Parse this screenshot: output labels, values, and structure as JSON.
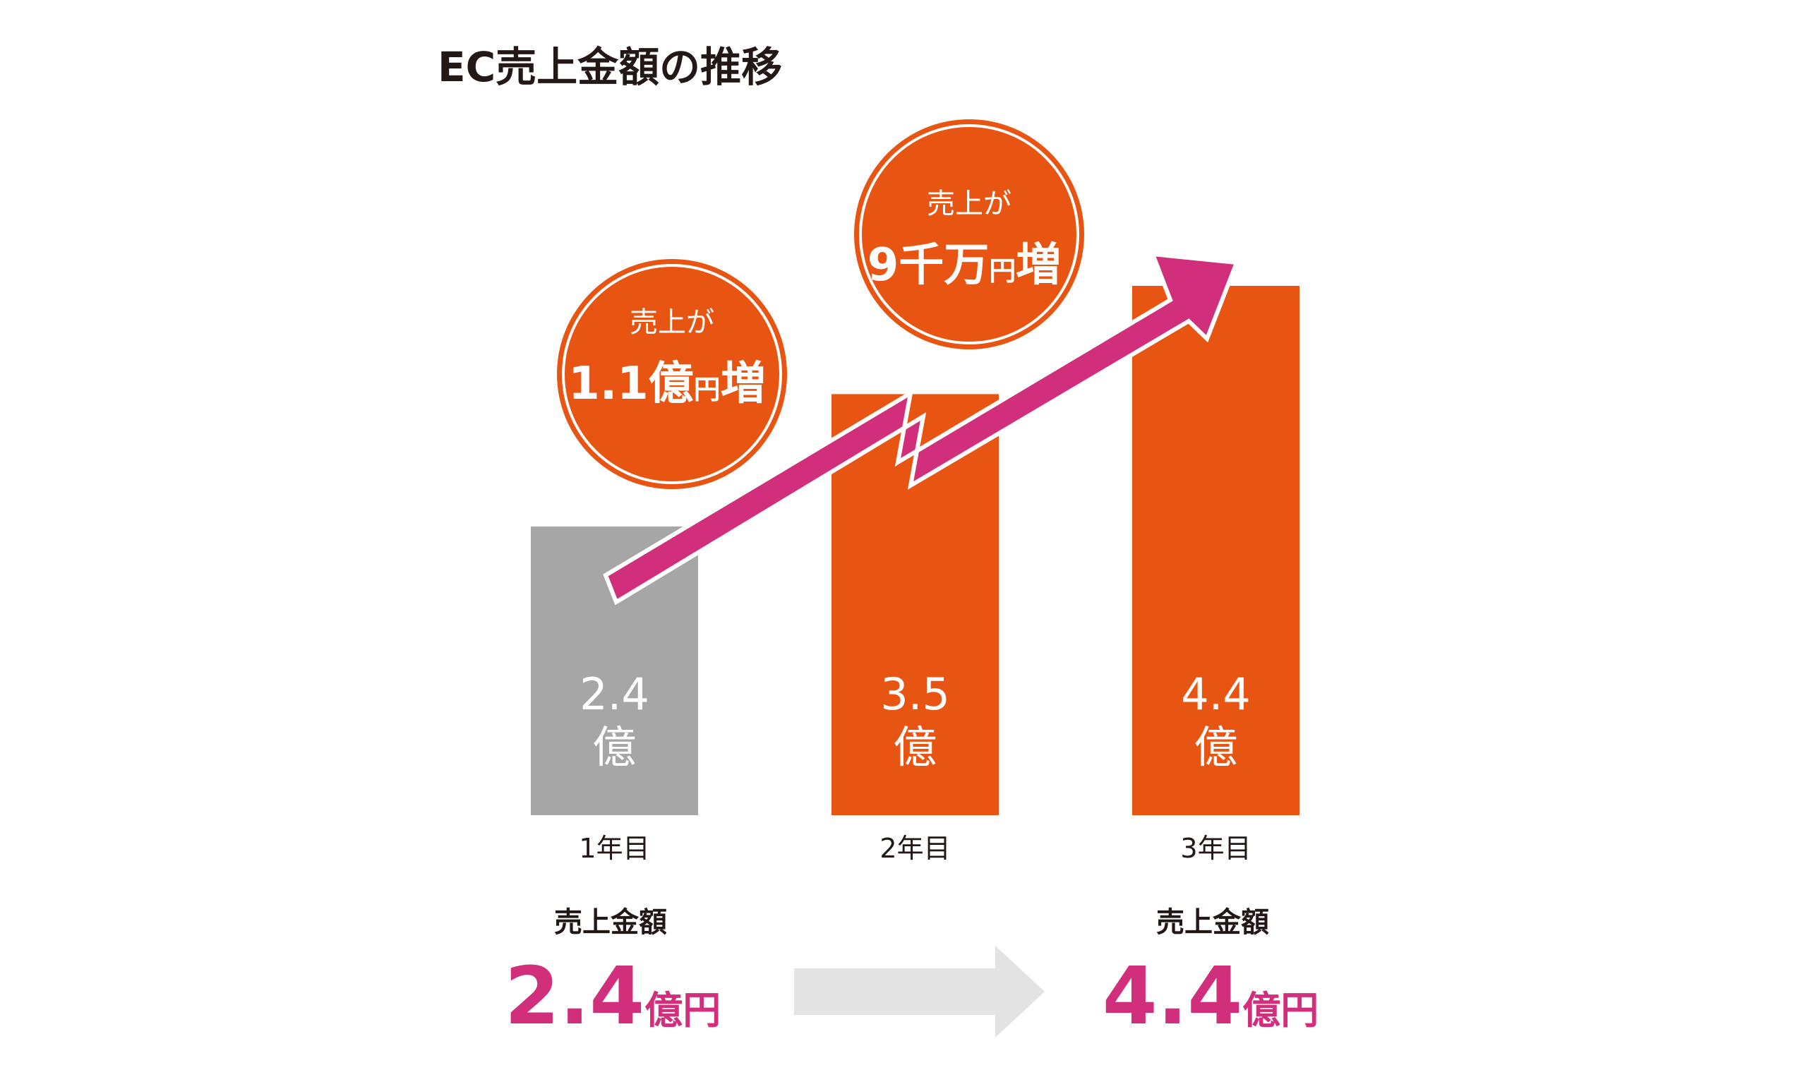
{
  "chart_data": {
    "type": "bar",
    "title": "EC売上金額の推移",
    "categories": [
      "1年目",
      "2年目",
      "3年目"
    ],
    "values": [
      2.4,
      3.5,
      4.4
    ],
    "value_labels": [
      "2.4",
      "3.5",
      "4.4"
    ],
    "value_unit": "億",
    "bar_colors": [
      "#a6a6a6",
      "#e85513",
      "#e85513"
    ],
    "xlabel": "",
    "ylabel": "",
    "grid": false,
    "legend": "none",
    "annotations": [
      {
        "line1": "売上が",
        "amount": "1.1億",
        "unit": "円",
        "suffix": "増"
      },
      {
        "line1": "売上が",
        "amount": "9千万",
        "unit": "円",
        "suffix": "増"
      }
    ]
  },
  "summary": {
    "left": {
      "label": "売上金額",
      "value": "2.4",
      "unit": "億円"
    },
    "right": {
      "label": "売上金額",
      "value": "4.4",
      "unit": "億円"
    }
  },
  "colors": {
    "accent_orange": "#e85513",
    "gray_bar": "#a6a6a6",
    "trend_arrow": "#d12e7b",
    "summary_value": "#d12e7b",
    "summary_arrow": "#e3e3e3",
    "text_dark": "#231815"
  }
}
